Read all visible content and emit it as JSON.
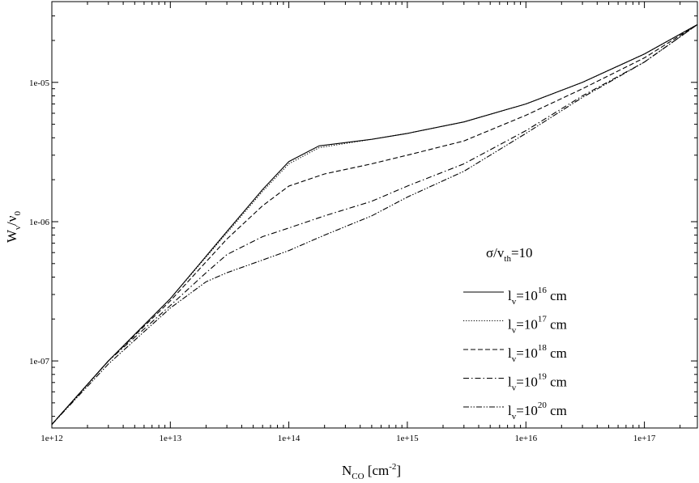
{
  "chart_data": {
    "type": "line",
    "xscale": "log",
    "yscale": "log",
    "xlim": [
      1000000000000.0,
      2.8e+17
    ],
    "ylim": [
      3.3e-08,
      3.8e-05
    ],
    "grid": false,
    "legend_position": "lower-right",
    "x_tick_labels": [
      "1e+12",
      "1e+13",
      "1e+14",
      "1e+15",
      "1e+16",
      "1e+17"
    ],
    "x_ticks": [
      1000000000000.0,
      10000000000000.0,
      100000000000000.0,
      1000000000000000.0,
      1e+16,
      1e+17
    ],
    "y_tick_labels": [
      "1e-07",
      "1e-06",
      "1e-05"
    ],
    "y_ticks": [
      1e-07,
      1e-06,
      1e-05
    ],
    "xlabel": {
      "main": "N",
      "sub": "CO",
      "rest": " [cm",
      "sup": "-2",
      "end": "]"
    },
    "ylabel": {
      "main": "W",
      "sub1": "ν",
      "mid": "/ν",
      "sub2": "0"
    },
    "annotation": {
      "main": "σ/v",
      "sub": "th",
      "rest": "=10"
    },
    "series": [
      {
        "name": "l_v=10^16 cm",
        "label": {
          "pre": "l",
          "sub": "v",
          "mid": "=10",
          "sup": "16",
          "post": " cm"
        },
        "dash": "solid",
        "x": [
          1000000000000.0,
          3000000000000.0,
          10000000000000.0,
          30000000000000.0,
          60000000000000.0,
          100000000000000.0,
          180000000000000.0,
          500000000000000.0,
          1000000000000000.0,
          3000000000000000.0,
          1e+16,
          3e+16,
          1e+17,
          2.8e+17
        ],
        "y": [
          3.5e-08,
          1e-07,
          2.8e-07,
          8.5e-07,
          1.7e-06,
          2.7e-06,
          3.5e-06,
          3.9e-06,
          4.3e-06,
          5.2e-06,
          7e-06,
          1e-05,
          1.6e-05,
          2.6e-05
        ]
      },
      {
        "name": "l_v=10^17 cm",
        "label": {
          "pre": "l",
          "sub": "v",
          "mid": "=10",
          "sup": "17",
          "post": " cm"
        },
        "dash": "dotted",
        "x": [
          1000000000000.0,
          3000000000000.0,
          10000000000000.0,
          30000000000000.0,
          60000000000000.0,
          100000000000000.0,
          180000000000000.0,
          500000000000000.0,
          1000000000000000.0,
          3000000000000000.0,
          1e+16,
          3e+16,
          1e+17,
          2.8e+17
        ],
        "y": [
          3.5e-08,
          1e-07,
          2.8e-07,
          8.3e-07,
          1.65e-06,
          2.6e-06,
          3.4e-06,
          3.9e-06,
          4.3e-06,
          5.2e-06,
          7e-06,
          1e-05,
          1.6e-05,
          2.6e-05
        ]
      },
      {
        "name": "l_v=10^18 cm",
        "label": {
          "pre": "l",
          "sub": "v",
          "mid": "=10",
          "sup": "18",
          "post": " cm"
        },
        "dash": "dashed",
        "x": [
          1000000000000.0,
          3000000000000.0,
          10000000000000.0,
          30000000000000.0,
          60000000000000.0,
          100000000000000.0,
          200000000000000.0,
          500000000000000.0,
          1000000000000000.0,
          3000000000000000.0,
          1e+16,
          3e+16,
          1e+17,
          2.8e+17
        ],
        "y": [
          3.5e-08,
          1e-07,
          2.7e-07,
          7.5e-07,
          1.3e-06,
          1.8e-06,
          2.2e-06,
          2.6e-06,
          3e-06,
          3.8e-06,
          5.8e-06,
          9e-06,
          1.5e-05,
          2.6e-05
        ]
      },
      {
        "name": "l_v=10^19 cm",
        "label": {
          "pre": "l",
          "sub": "v",
          "mid": "=10",
          "sup": "19",
          "post": " cm"
        },
        "dash": "dashdot",
        "x": [
          1000000000000.0,
          3000000000000.0,
          10000000000000.0,
          20000000000000.0,
          30000000000000.0,
          60000000000000.0,
          100000000000000.0,
          200000000000000.0,
          500000000000000.0,
          1000000000000000.0,
          3000000000000000.0,
          1e+16,
          3e+16,
          1e+17,
          2.8e+17
        ],
        "y": [
          3.5e-08,
          1e-07,
          2.5e-07,
          4.3e-07,
          5.8e-07,
          7.8e-07,
          9e-07,
          1.1e-06,
          1.4e-06,
          1.8e-06,
          2.6e-06,
          4.5e-06,
          8e-06,
          1.4e-05,
          2.6e-05
        ]
      },
      {
        "name": "l_v=10^20 cm",
        "label": {
          "pre": "l",
          "sub": "v",
          "mid": "=10",
          "sup": "20",
          "post": " cm"
        },
        "dash": "dashdotdot",
        "x": [
          1000000000000.0,
          3000000000000.0,
          10000000000000.0,
          20000000000000.0,
          30000000000000.0,
          60000000000000.0,
          100000000000000.0,
          200000000000000.0,
          500000000000000.0,
          1000000000000000.0,
          3000000000000000.0,
          1e+16,
          3e+16,
          1e+17,
          2.8e+17
        ],
        "y": [
          3.5e-08,
          9.5e-08,
          2.4e-07,
          3.7e-07,
          4.3e-07,
          5.3e-07,
          6.2e-07,
          8e-07,
          1.1e-06,
          1.5e-06,
          2.3e-06,
          4.3e-06,
          7.8e-06,
          1.4e-05,
          2.6e-05
        ]
      }
    ]
  }
}
